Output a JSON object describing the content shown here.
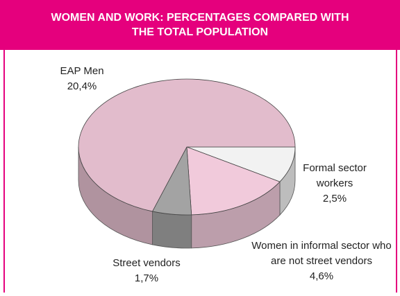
{
  "chart_data": {
    "type": "pie",
    "title": "WOMEN AND WORK: PERCENTAGES COMPARED WITH THE TOTAL POPULATION",
    "categories": [
      "Formal sector workers",
      "Women in informal sector who are not street vendors",
      "Street vendors",
      "EAP Men"
    ],
    "values": [
      2.5,
      4.6,
      1.7,
      20.4
    ],
    "value_labels": [
      "2,5%",
      "4,6%",
      "1,7%",
      "20,4%"
    ],
    "colors": [
      "#f2f2f2",
      "#f1cadb",
      "#a3a3a3",
      "#e2bccc"
    ]
  }
}
